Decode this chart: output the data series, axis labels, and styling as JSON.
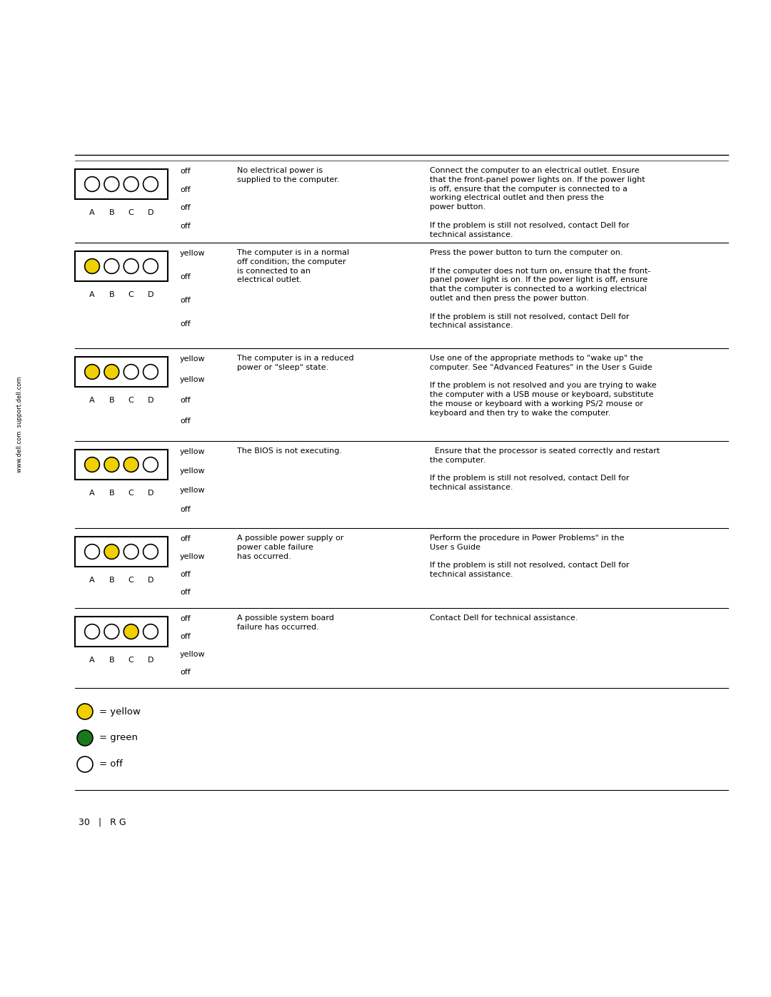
{
  "background_color": "#ffffff",
  "side_text_top": "support.dell.com",
  "side_text_bot": "www.dell.com",
  "rows": [
    {
      "lights": [
        "off",
        "off",
        "off",
        "off"
      ],
      "light_labels": [
        "A",
        "B",
        "C",
        "D"
      ],
      "state_labels": [
        "off",
        "off",
        "off",
        "off"
      ],
      "cause": "No electrical power is\nsupplied to the computer.",
      "action": "Connect the computer to an electrical outlet. Ensure\nthat the front-panel power lights on. If the power light\nis off, ensure that the computer is connected to a\nworking electrical outlet and then press the\npower button.\n\nIf the problem is still not resolved, contact Dell for\ntechnical assistance."
    },
    {
      "lights": [
        "yellow",
        "off",
        "off",
        "off"
      ],
      "light_labels": [
        "A",
        "B",
        "C",
        "D"
      ],
      "state_labels": [
        "yellow",
        "off",
        "off",
        "off"
      ],
      "cause": "The computer is in a normal\noff condition; the computer\nis connected to an\nelectrical outlet.",
      "action": "Press the power button to turn the computer on.\n\nIf the computer does not turn on, ensure that the front-\npanel power light is on. If the power light is off, ensure\nthat the computer is connected to a working electrical\noutlet and then press the power button.\n\nIf the problem is still not resolved, contact Dell for\ntechnical assistance."
    },
    {
      "lights": [
        "yellow",
        "yellow",
        "off",
        "off"
      ],
      "light_labels": [
        "A",
        "B",
        "C",
        "D"
      ],
      "state_labels": [
        "yellow",
        "yellow",
        "off",
        "off"
      ],
      "cause": "The computer is in a reduced\npower or \"sleep\" state.",
      "action": "Use one of the appropriate methods to \"wake up\" the\ncomputer. See \"Advanced Features\" in the User s Guide\n\nIf the problem is not resolved and you are trying to wake\nthe computer with a USB mouse or keyboard, substitute\nthe mouse or keyboard with a working PS/2 mouse or\nkeyboard and then try to wake the computer."
    },
    {
      "lights": [
        "yellow",
        "yellow",
        "yellow",
        "off"
      ],
      "light_labels": [
        "A",
        "B",
        "C",
        "D"
      ],
      "state_labels": [
        "yellow",
        "yellow",
        "yellow",
        "off"
      ],
      "cause": "The BIOS is not executing.",
      "action": "  Ensure that the processor is seated correctly and restart\nthe computer.\n\nIf the problem is still not resolved, contact Dell for\ntechnical assistance."
    },
    {
      "lights": [
        "off",
        "yellow",
        "off",
        "off"
      ],
      "light_labels": [
        "A",
        "B",
        "C",
        "D"
      ],
      "state_labels": [
        "off",
        "yellow",
        "off",
        "off"
      ],
      "cause": "A possible power supply or\npower cable failure\nhas occurred.",
      "action": "Perform the procedure in Power Problems\" in the\nUser s Guide\n\nIf the problem is still not resolved, contact Dell for\ntechnical assistance."
    },
    {
      "lights": [
        "off",
        "off",
        "yellow",
        "off"
      ],
      "light_labels": [
        "A",
        "B",
        "C",
        "D"
      ],
      "state_labels": [
        "off",
        "off",
        "yellow",
        "off"
      ],
      "cause": "A possible system board\nfailure has occurred.",
      "action": "Contact Dell for technical assistance."
    }
  ],
  "legend_items": [
    {
      "color": "#f0d000",
      "outline": "#888800",
      "label": "= yellow"
    },
    {
      "color": "#1a7a1a",
      "outline": "#1a7a1a",
      "label": "= green"
    },
    {
      "color": "#ffffff",
      "outline": "#000000",
      "label": "= off"
    }
  ],
  "page_text": "30   |   R G",
  "yellow_color": "#f0d000",
  "green_color": "#1a7a1a",
  "off_color": "#ffffff"
}
